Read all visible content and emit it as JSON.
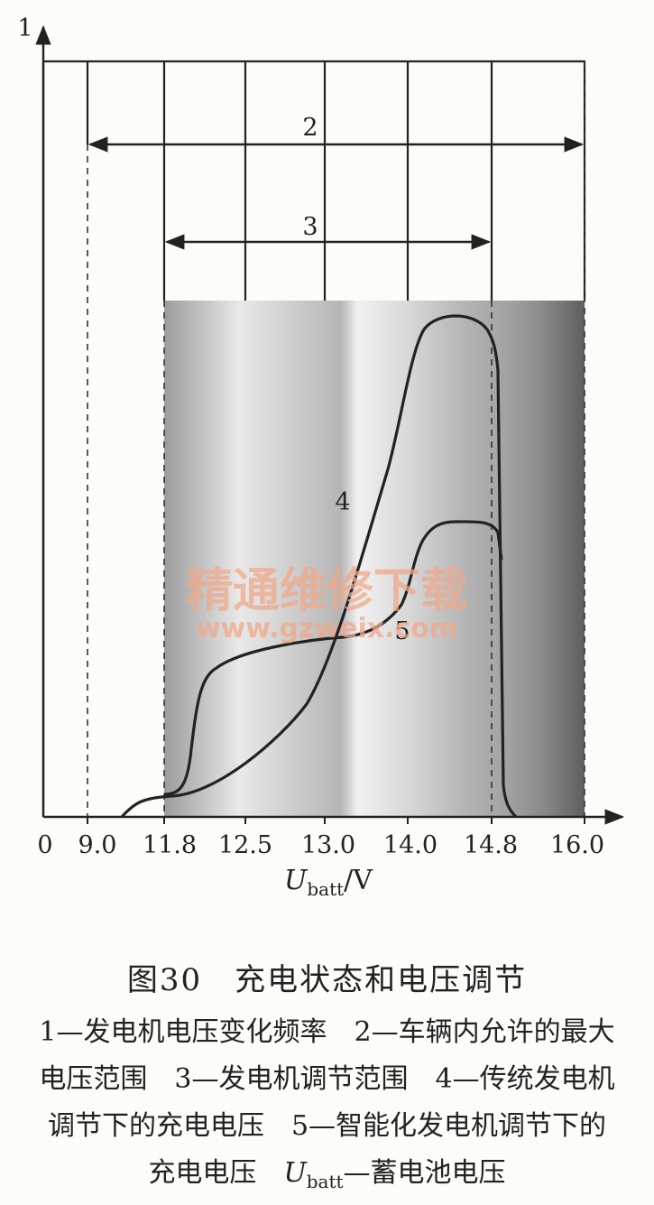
{
  "chart_data": {
    "type": "line",
    "x_ticks": [
      "0",
      "9.0",
      "11.8",
      "12.5",
      "13.0",
      "14.0",
      "14.8",
      "16.0"
    ],
    "y_axis_label": "1",
    "xlabel_main": "U",
    "xlabel_sub": "batt",
    "xlabel_unit": "/V",
    "ranges": [
      {
        "label": "2",
        "from": "9.0",
        "to": "16.0"
      },
      {
        "label": "3",
        "from": "11.8",
        "to": "14.8"
      }
    ],
    "series": [
      {
        "name": "4"
      },
      {
        "name": "5"
      }
    ]
  },
  "watermark": {
    "text": "精通维修下载",
    "url": "www.gzweix.com"
  },
  "caption": {
    "title": "图30　充电状态和电压调节",
    "line1": "1—发电机电压变化频率　2—车辆内允许的最大",
    "line2": "电压范围　3—发电机调节范围　4—传统发电机",
    "line3": "调节下的充电电压　5—智能化发电机调节下的",
    "line4_pre": "充电电压　",
    "line4_u": "U",
    "line4_sub": "batt",
    "line4_post": "—蓄电池电压"
  }
}
